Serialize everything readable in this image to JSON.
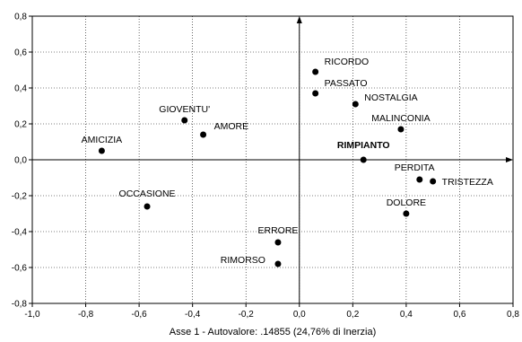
{
  "chart_data": {
    "type": "scatter",
    "xlabel": "Asse 1 - Autovalore: .14855 (24,76% di Inerzia)",
    "ylabel": "",
    "xlim": [
      -1.0,
      0.8
    ],
    "ylim": [
      -0.8,
      0.8
    ],
    "grid": true,
    "x_ticks": [
      -1.0,
      -0.8,
      -0.6,
      -0.4,
      -0.2,
      0.0,
      0.2,
      0.4,
      0.6,
      0.8
    ],
    "y_ticks": [
      -0.8,
      -0.6,
      -0.4,
      -0.2,
      0.0,
      0.2,
      0.4,
      0.6,
      0.8
    ],
    "x_tick_labels": [
      "-1,0",
      "-0,8",
      "-0,6",
      "-0,4",
      "-0,2",
      "0,0",
      "0,2",
      "0,4",
      "0,6",
      "0,8"
    ],
    "y_tick_labels": [
      "-0,8",
      "-0,6",
      "-0,4",
      "-0,2",
      "0,0",
      "0,2",
      "0,4",
      "0,6",
      "0,8"
    ],
    "points": [
      {
        "label": "RICORDO",
        "x": 0.06,
        "y": 0.49
      },
      {
        "label": "PASSATO",
        "x": 0.06,
        "y": 0.37
      },
      {
        "label": "NOSTALGIA",
        "x": 0.21,
        "y": 0.31
      },
      {
        "label": "MALINCONIA",
        "x": 0.38,
        "y": 0.17
      },
      {
        "label": "GIOVENTU'",
        "x": -0.43,
        "y": 0.22
      },
      {
        "label": "AMORE",
        "x": -0.36,
        "y": 0.14
      },
      {
        "label": "AMICIZIA",
        "x": -0.74,
        "y": 0.05
      },
      {
        "label": "RIMPIANTO",
        "x": 0.24,
        "y": 0.0,
        "bold": true
      },
      {
        "label": "PERDITA",
        "x": 0.45,
        "y": -0.11
      },
      {
        "label": "TRISTEZZA",
        "x": 0.5,
        "y": -0.12
      },
      {
        "label": "DOLORE",
        "x": 0.4,
        "y": -0.3
      },
      {
        "label": "OCCASIONE",
        "x": -0.57,
        "y": -0.26
      },
      {
        "label": "ERRORE",
        "x": -0.08,
        "y": -0.46
      },
      {
        "label": "RIMORSO",
        "x": -0.08,
        "y": -0.58
      }
    ]
  }
}
